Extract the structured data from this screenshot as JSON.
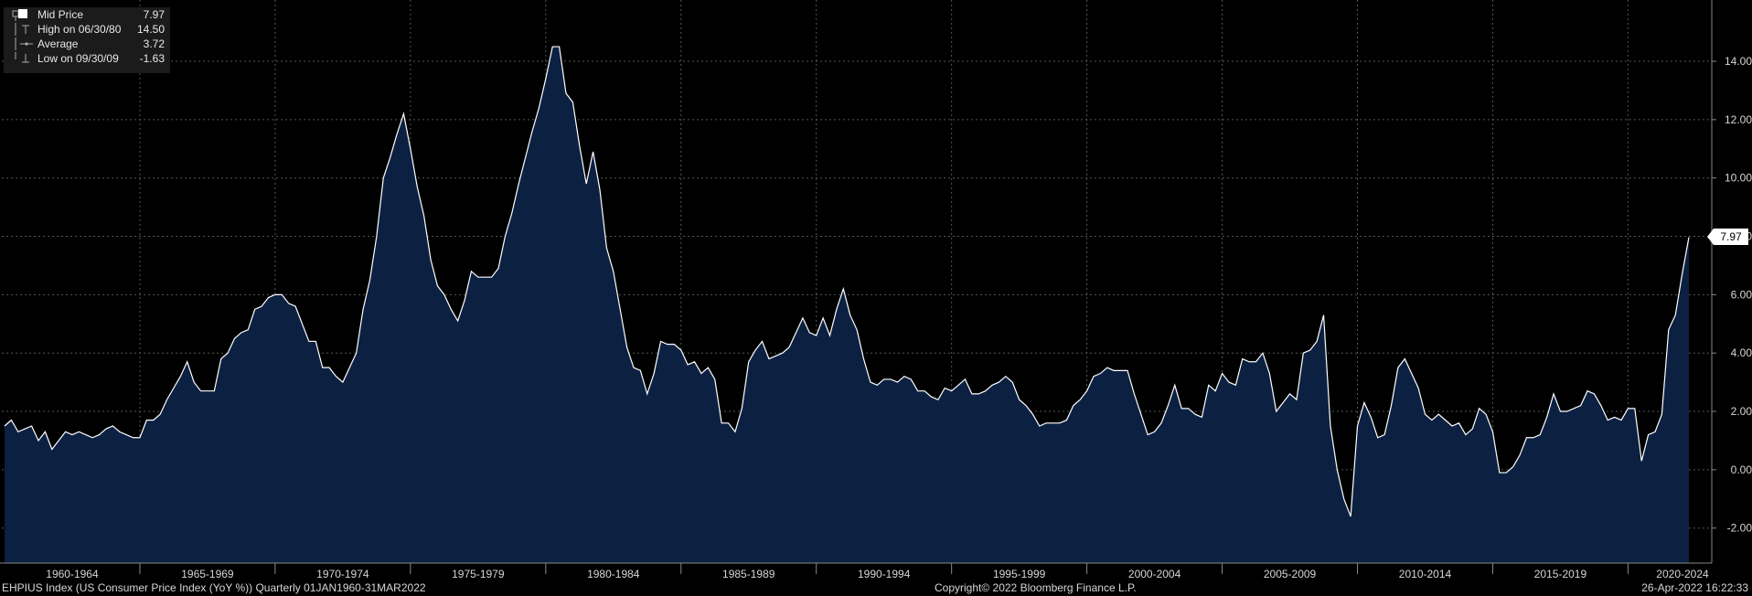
{
  "legend": {
    "mid_price_label": "Mid Price",
    "mid_price_value": "7.97",
    "high_label": "High on 06/30/80",
    "high_value": "14.50",
    "average_label": "Average",
    "average_value": "3.72",
    "low_label": "Low on 09/30/09",
    "low_value": "-1.63"
  },
  "last_value_tag": "7.97",
  "footer": {
    "left": "EHPIUS Index (US Consumer Price Index (YoY %))  Quarterly 01JAN1960-31MAR2022",
    "center": "Copyright© 2022 Bloomberg Finance L.P.",
    "right": "26-Apr-2022 16:22:33"
  },
  "colors": {
    "background": "#000000",
    "area_fill": "#0c2142",
    "line": "#ffffff",
    "grid": "#555555"
  },
  "chart_data": {
    "type": "area",
    "title": "",
    "xlabel": "",
    "ylabel": "",
    "x_start": "1960-Q1",
    "x_end": "2022-Q1",
    "ylim": [
      -3.2,
      16.1
    ],
    "y_ticks": [
      "-2.00",
      "0.00",
      "2.00",
      "4.00",
      "6.00",
      "8.00",
      "10.00",
      "12.00",
      "14.00"
    ],
    "y_tick_values": [
      -2,
      0,
      2,
      4,
      6,
      8,
      10,
      12,
      14
    ],
    "x_tick_labels": [
      "1960-1964",
      "1965-1969",
      "1970-1974",
      "1975-1979",
      "1980-1984",
      "1985-1989",
      "1990-1994",
      "1995-1999",
      "2000-2004",
      "2005-2009",
      "2010-2014",
      "2015-2019",
      "2020-2024"
    ],
    "grid": true,
    "axis_position": "right",
    "series": [
      {
        "values": [
          1.5,
          1.7,
          1.3,
          1.4,
          1.5,
          1.0,
          1.3,
          0.7,
          1.0,
          1.3,
          1.2,
          1.3,
          1.2,
          1.1,
          1.2,
          1.4,
          1.5,
          1.3,
          1.2,
          1.1,
          1.1,
          1.7,
          1.7,
          1.9,
          2.4,
          2.8,
          3.2,
          3.7,
          3.0,
          2.7,
          2.7,
          2.7,
          3.8,
          4.0,
          4.5,
          4.7,
          4.8,
          5.5,
          5.6,
          5.9,
          6.0,
          6.0,
          5.7,
          5.6,
          5.0,
          4.4,
          4.4,
          3.5,
          3.5,
          3.2,
          3.0,
          3.5,
          4.0,
          5.5,
          6.5,
          8.0,
          10.0,
          10.7,
          11.5,
          12.2,
          11.0,
          9.7,
          8.7,
          7.2,
          6.3,
          6.0,
          5.5,
          5.1,
          5.8,
          6.8,
          6.6,
          6.6,
          6.6,
          6.9,
          8.0,
          8.8,
          9.8,
          10.7,
          11.6,
          12.4,
          13.4,
          14.5,
          14.5,
          12.9,
          12.6,
          11.1,
          9.8,
          10.9,
          9.6,
          7.6,
          6.8,
          5.5,
          4.2,
          3.5,
          3.4,
          2.6,
          3.3,
          4.4,
          4.3,
          4.3,
          4.1,
          3.6,
          3.7,
          3.3,
          3.5,
          3.1,
          1.6,
          1.6,
          1.3,
          2.1,
          3.7,
          4.1,
          4.4,
          3.8,
          3.9,
          4.0,
          4.2,
          4.7,
          5.2,
          4.7,
          4.6,
          5.2,
          4.6,
          5.5,
          6.2,
          5.3,
          4.8,
          3.8,
          3.0,
          2.9,
          3.1,
          3.1,
          3.0,
          3.2,
          3.1,
          2.7,
          2.7,
          2.5,
          2.4,
          2.8,
          2.7,
          2.9,
          3.1,
          2.6,
          2.6,
          2.7,
          2.9,
          3.0,
          3.2,
          3.0,
          2.4,
          2.2,
          1.9,
          1.5,
          1.6,
          1.6,
          1.6,
          1.7,
          2.2,
          2.4,
          2.7,
          3.2,
          3.3,
          3.5,
          3.4,
          3.4,
          3.4,
          2.6,
          1.9,
          1.2,
          1.3,
          1.6,
          2.2,
          2.9,
          2.1,
          2.1,
          1.9,
          1.8,
          2.9,
          2.7,
          3.3,
          3.0,
          2.9,
          3.8,
          3.7,
          3.7,
          4.0,
          3.3,
          2.0,
          2.3,
          2.6,
          2.4,
          4.0,
          4.1,
          4.4,
          5.3,
          1.5,
          0.0,
          -1.0,
          -1.6,
          1.5,
          2.3,
          1.8,
          1.1,
          1.2,
          2.2,
          3.5,
          3.8,
          3.3,
          2.8,
          1.9,
          1.7,
          1.9,
          1.7,
          1.5,
          1.6,
          1.2,
          1.4,
          2.1,
          1.9,
          1.3,
          -0.1,
          -0.1,
          0.1,
          0.5,
          1.1,
          1.1,
          1.2,
          1.8,
          2.6,
          2.0,
          2.0,
          2.1,
          2.2,
          2.7,
          2.6,
          2.2,
          1.7,
          1.8,
          1.7,
          2.1,
          2.1,
          0.3,
          1.2,
          1.3,
          1.9,
          4.8,
          5.3,
          6.7,
          7.97
        ]
      }
    ]
  }
}
